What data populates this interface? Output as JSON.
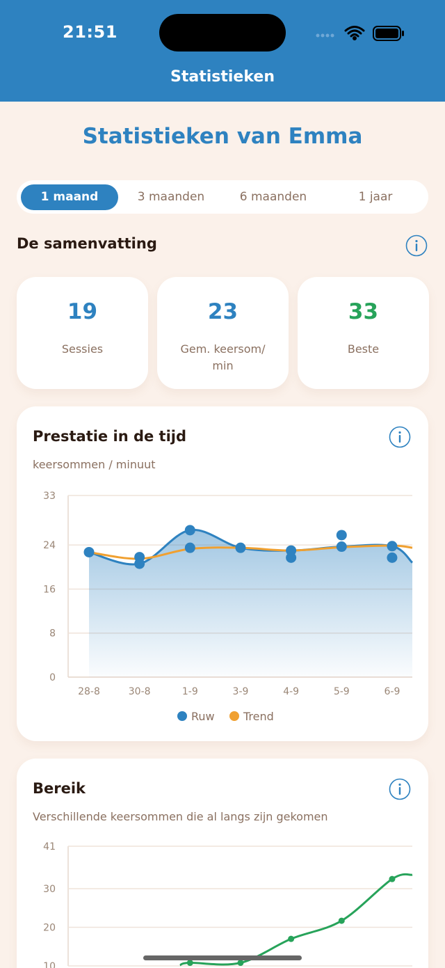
{
  "status_bar": {
    "time": "21:51"
  },
  "header": {
    "title": "Statistieken"
  },
  "page_title": "Statistieken van Emma",
  "range_tabs": [
    {
      "label": "1 maand",
      "active": true
    },
    {
      "label": "3 maanden",
      "active": false
    },
    {
      "label": "6 maanden",
      "active": false
    },
    {
      "label": "1 jaar",
      "active": false
    }
  ],
  "summary": {
    "title": "De samenvatting",
    "stats": [
      {
        "value": "19",
        "label": "Sessies",
        "color": "#2e82c0"
      },
      {
        "value": "23",
        "label": "Gem. keersom/ min",
        "color": "#2e82c0"
      },
      {
        "value": "33",
        "label": "Beste",
        "color": "#27a35a"
      }
    ]
  },
  "performance_card": {
    "title": "Prestatie in de tijd",
    "subtitle": "keersommen / minuut",
    "legend": [
      {
        "name": "Ruw",
        "color": "#2e82c0"
      },
      {
        "name": "Trend",
        "color": "#f0a030"
      }
    ]
  },
  "range_card": {
    "title": "Bereik",
    "subtitle": "Verschillende keersommen die al langs zijn gekomen"
  },
  "chart_data": [
    {
      "type": "line",
      "ylabel": "keersommen / minuut",
      "ylim": [
        0,
        33
      ],
      "yticks": [
        0,
        8,
        16,
        24,
        33
      ],
      "x_labels": [
        "28-8",
        "30-8",
        "1-9",
        "3-9",
        "4-9",
        "5-9",
        "6-9"
      ],
      "x_span": [
        0,
        6.4
      ],
      "series": [
        {
          "name": "Ruw",
          "color": "#2e82c0",
          "points": [
            [
              0,
              22.7
            ],
            [
              1,
              21.8
            ],
            [
              1,
              20.6
            ],
            [
              2,
              26.7
            ],
            [
              2,
              23.5
            ],
            [
              3,
              23.5
            ],
            [
              4,
              23.0
            ],
            [
              4,
              21.7
            ],
            [
              5,
              25.8
            ],
            [
              5,
              23.7
            ],
            [
              6,
              23.8
            ],
            [
              6,
              21.7
            ]
          ],
          "end": [
            6.4,
            20.8
          ]
        },
        {
          "name": "Trend",
          "color": "#f0a030",
          "points": [
            [
              0,
              22.7
            ],
            [
              1,
              21.5
            ],
            [
              2,
              23.3
            ],
            [
              3,
              23.5
            ],
            [
              4,
              23.0
            ],
            [
              5,
              23.6
            ],
            [
              6,
              23.9
            ]
          ],
          "end": [
            6.4,
            23.5
          ]
        }
      ]
    },
    {
      "type": "line",
      "ylabel": "Verschillende keersommen die al langs zijn gekomen",
      "ylim": [
        10,
        41
      ],
      "yticks": [
        10,
        20,
        30,
        41
      ],
      "x_span": [
        0,
        6.4
      ],
      "series": [
        {
          "name": "Bereik",
          "color": "#27a35a",
          "points": [
            [
              2,
              10.8
            ],
            [
              3,
              10.8
            ],
            [
              4,
              17.0
            ],
            [
              5,
              21.7
            ],
            [
              6,
              32.5
            ]
          ],
          "start": [
            1.8,
            10.2
          ],
          "end": [
            6.4,
            33.6
          ]
        }
      ]
    }
  ]
}
